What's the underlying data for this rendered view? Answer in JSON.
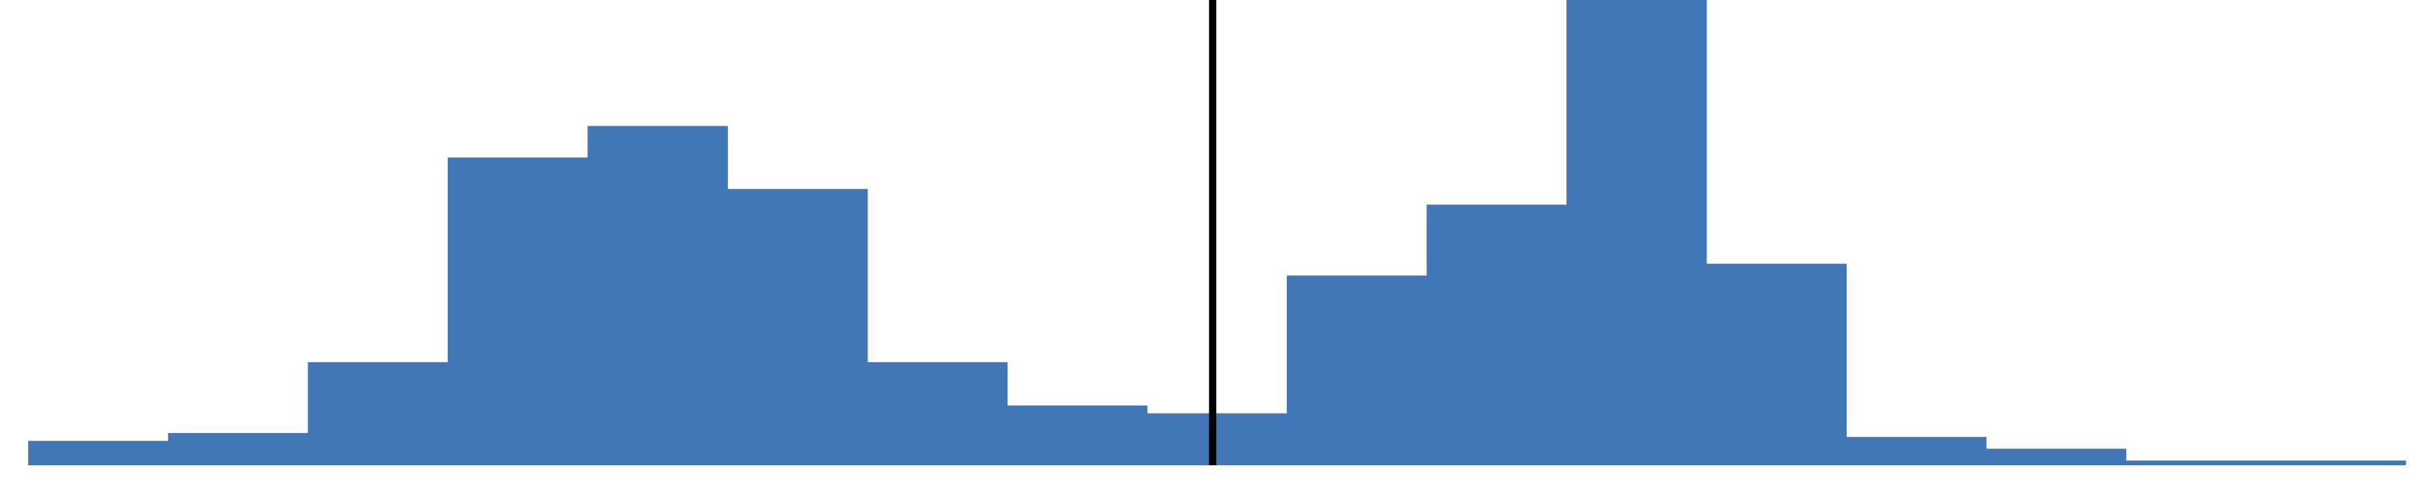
{
  "chart_data": {
    "type": "bar",
    "title": "",
    "xlabel": "",
    "ylabel": "",
    "bin_count": 17,
    "values": [
      6,
      8,
      26,
      78,
      86,
      70,
      26,
      15,
      13,
      48,
      66,
      118,
      51,
      7,
      4,
      1,
      1
    ],
    "ylim": [
      0,
      118
    ],
    "grid": false,
    "legend": "none",
    "reference_line": {
      "after_bin_index": 8,
      "fraction_into_bin": 0.47
    },
    "colors": {
      "bars": "#4277b7",
      "reference_line": "#000000",
      "background": "#ffffff"
    }
  }
}
